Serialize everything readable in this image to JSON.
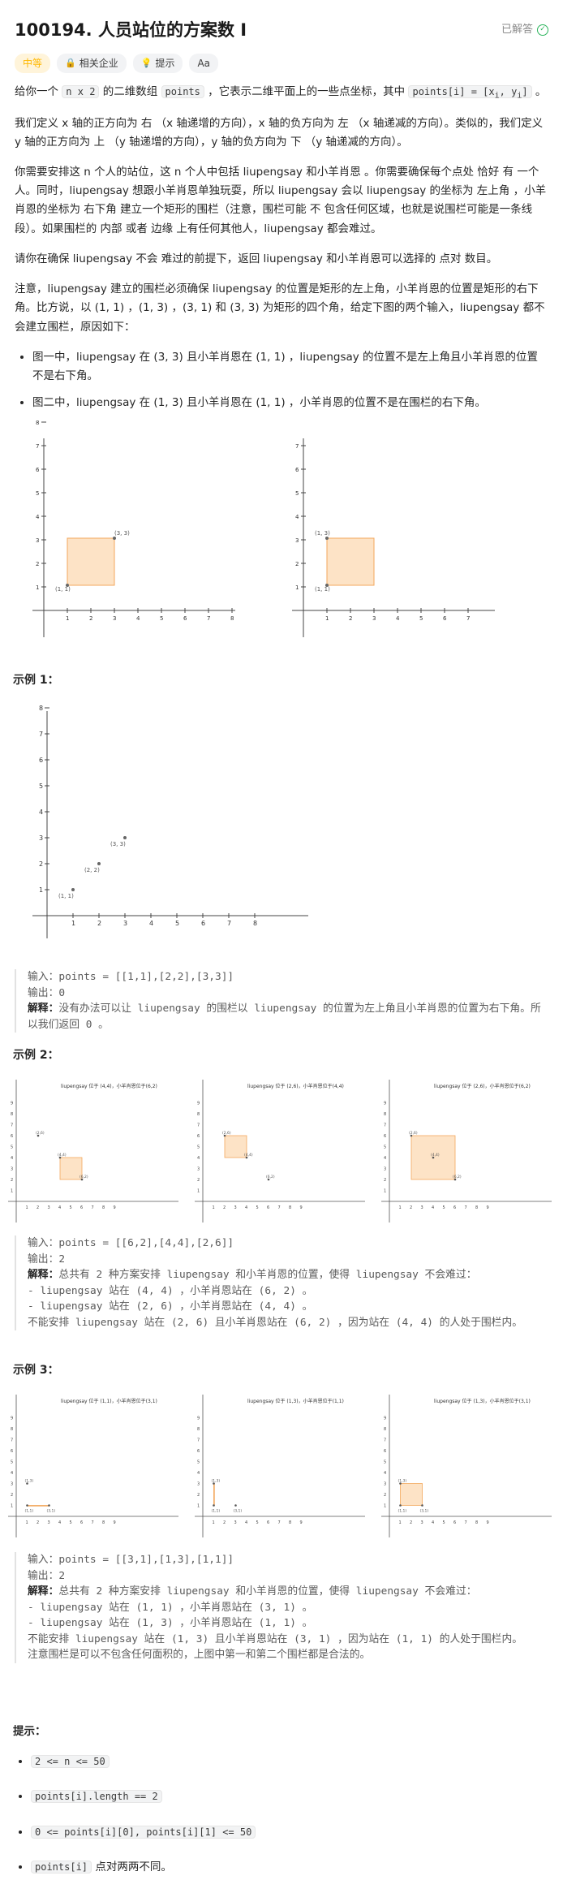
{
  "problem": {
    "title": "100194. 人员站位的方案数 I",
    "status": "已解答"
  },
  "tags": {
    "difficulty": "中等",
    "company": "相关企业",
    "hint": "提示",
    "font": "Aa"
  },
  "desc": {
    "p1a": "给你一个 ",
    "p1c1": "n x 2",
    "p1b": " 的二维数组 ",
    "p1c2": "points",
    "p1d": " ，它表示二维平面上的一些点坐标，其中 ",
    "p1c3": "points[i] = [x",
    "p1e": " 。",
    "p2": "我们定义 x 轴的正方向为 右 （x 轴递增的方向），x 轴的负方向为 左 （x 轴递减的方向）。类似的，我们定义 y 轴的正方向为 上 （y 轴递增的方向），y 轴的负方向为 下 （y 轴递减的方向）。",
    "p3": "你需要安排这 n 个人的站位，这 n 个人中包括 liupengsay 和小羊肖恩 。你需要确保每个点处 恰好 有 一个 人。同时，liupengsay 想跟小羊肖恩单独玩耍，所以 liupengsay 会以 liupengsay 的坐标为 左上角 ，小羊肖恩的坐标为 右下角 建立一个矩形的围栏（注意，围栏可能 不 包含任何区域，也就是说围栏可能是一条线段）。如果围栏的 内部 或者 边缘 上有任何其他人，liupengsay 都会难过。",
    "p4": "请你在确保 liupengsay 不会 难过的前提下，返回 liupengsay 和小羊肖恩可以选择的 点对 数目。",
    "p5": "注意，liupengsay 建立的围栏必须确保 liupengsay 的位置是矩形的左上角，小羊肖恩的位置是矩形的右下角。比方说，以 (1, 1) ，(1, 3) ，(3, 1) 和 (3, 3) 为矩形的四个角，给定下图的两个输入，liupengsay 都不会建立围栏，原因如下：",
    "b1": "图一中，liupengsay 在 (3, 3) 且小羊肖恩在 (1, 1) ，liupengsay 的位置不是左上角且小羊肖恩的位置不是右下角。",
    "b2": "图二中，liupengsay 在 (1, 3) 且小羊肖恩在 (1, 1) ，小羊肖恩的位置不是在围栏的右下角。"
  },
  "examples": [
    {
      "heading": "示例 1：",
      "input": "输入：points = [[1,1],[2,2],[3,3]]",
      "output": "输出：0",
      "expl_label": "解释：",
      "expl": "没有办法可以让 liupengsay 的围栏以 liupengsay 的位置为左上角且小羊肖恩的位置为右下角。所以我们返回 0 。"
    },
    {
      "heading": "示例 2：",
      "input": "输入：points = [[6,2],[4,4],[2,6]]",
      "output": "输出：2",
      "expl_label": "解释：",
      "expl": "总共有 2 种方案安排 liupengsay 和小羊肖恩的位置，使得 liupengsay 不会难过：",
      "l1": "- liupengsay 站在 (4, 4) ，小羊肖恩站在 (6, 2) 。",
      "l2": "- liupengsay 站在 (2, 6) ，小羊肖恩站在 (4, 4) 。",
      "l3": "不能安排 liupengsay 站在 (2, 6) 且小羊肖恩站在 (6, 2) ，因为站在 (4, 4) 的人处于围栏内。"
    },
    {
      "heading": "示例 3：",
      "input": "输入：points = [[3,1],[1,3],[1,1]]",
      "output": "输出：2",
      "expl_label": "解释：",
      "expl": "总共有 2 种方案安排 liupengsay 和小羊肖恩的位置，使得 liupengsay 不会难过：",
      "l1": "- liupengsay 站在 (1, 1) ，小羊肖恩站在 (3, 1) 。",
      "l2": "- liupengsay 站在 (1, 3) ，小羊肖恩站在 (1, 1) 。",
      "l3": "不能安排 liupengsay 站在 (1, 3) 且小羊肖恩站在 (3, 1) ，因为站在 (1, 1) 的人处于围栏内。",
      "l4": "注意围栏是可以不包含任何面积的，上图中第一和第二个围栏都是合法的。"
    }
  ],
  "figures": {
    "ex2": [
      "liupengsay 位于 (4,4)，小羊肖恩位于(6,2)",
      "liupengsay 位于 (2,6)，小羊肖恩位于(4,4)",
      "liupengsay 位于 (2,6)，小羊肖恩位于(6,2)"
    ],
    "ex3": [
      "liupengsay 位于 (1,1)，小羊肖恩位于(3,1)",
      "liupengsay 位于 (1,3)，小羊肖恩位于(1,1)",
      "liupengsay 位于 (1,3)，小羊肖恩位于(3,1)"
    ]
  },
  "hints": {
    "heading": "提示：",
    "h1": "2 <= n <= 50",
    "h2": "points[i].length == 2",
    "h3": "0 <= points[i][0], points[i][1] <= 50",
    "h4a": "points[i]",
    "h4b": " 点对两两不同。"
  },
  "colors": {
    "fence_fill": "#fde3c6",
    "fence_stroke": "#f3a75c"
  }
}
